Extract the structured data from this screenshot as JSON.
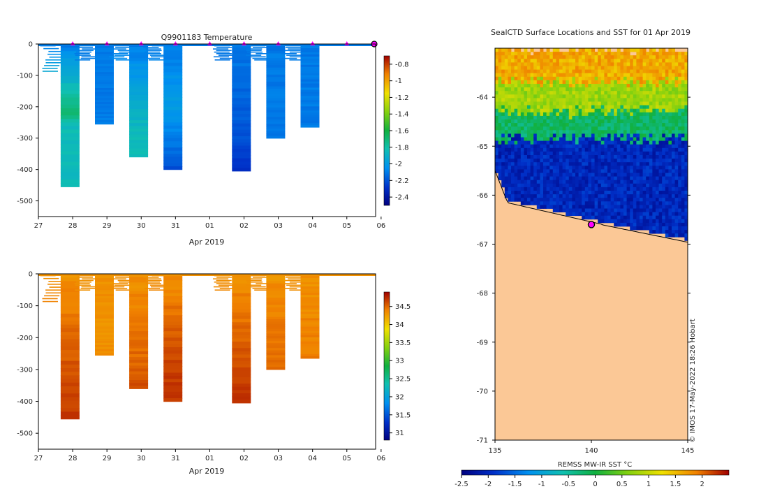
{
  "chart_data": [
    {
      "type": "heatmap",
      "title": "Q9901183  Temperature",
      "xlabel": "Apr 2019",
      "x_tick_labels": [
        "27",
        "28",
        "29",
        "30",
        "31",
        "01",
        "02",
        "03",
        "04",
        "05",
        "06"
      ],
      "y_tick_labels": [
        "0",
        "-100",
        "-200",
        "-300",
        "-400",
        "-500"
      ],
      "ylim": [
        -550,
        0
      ],
      "colorbar": {
        "ticks": [
          "-0.8",
          "-1",
          "-1.2",
          "-1.4",
          "-1.6",
          "-1.8",
          "-2",
          "-2.2",
          "-2.4"
        ],
        "range": [
          -2.5,
          -0.7
        ]
      },
      "profile_marker_days": [
        28,
        29,
        30,
        31,
        32,
        33,
        34,
        35,
        36
      ],
      "profiles": [
        {
          "day": 28,
          "bottom_depth": 455,
          "values": [
            [
              0,
              -2.1
            ],
            [
              220,
              -1.7
            ],
            [
              260,
              -1.85
            ],
            [
              455,
              -1.85
            ]
          ]
        },
        {
          "day": 29,
          "bottom_depth": 255,
          "values": [
            [
              0,
              -2.1
            ],
            [
              255,
              -2.1
            ]
          ]
        },
        {
          "day": 30,
          "bottom_depth": 360,
          "values": [
            [
              0,
              -2.1
            ],
            [
              280,
              -1.85
            ],
            [
              360,
              -1.85
            ]
          ]
        },
        {
          "day": 31,
          "bottom_depth": 400,
          "values": [
            [
              0,
              -2.1
            ],
            [
              200,
              -2.0
            ],
            [
              400,
              -2.2
            ]
          ]
        },
        {
          "day": 33,
          "bottom_depth": 405,
          "values": [
            [
              0,
              -2.1
            ],
            [
              300,
              -2.2
            ],
            [
              405,
              -2.3
            ]
          ]
        },
        {
          "day": 34,
          "bottom_depth": 300,
          "values": [
            [
              0,
              -2.1
            ],
            [
              300,
              -2.1
            ]
          ]
        },
        {
          "day": 35,
          "bottom_depth": 265,
          "values": [
            [
              0,
              -2.1
            ],
            [
              265,
              -2.1
            ]
          ]
        }
      ]
    },
    {
      "type": "heatmap",
      "title": "",
      "xlabel": "Apr 2019",
      "x_tick_labels": [
        "27",
        "28",
        "29",
        "30",
        "31",
        "01",
        "02",
        "03",
        "04",
        "05",
        "06"
      ],
      "y_tick_labels": [
        "0",
        "-100",
        "-200",
        "-300",
        "-400",
        "-500"
      ],
      "ylim": [
        -550,
        0
      ],
      "colorbar": {
        "ticks": [
          "34.5",
          "34",
          "33.5",
          "33",
          "32.5",
          "32",
          "31.5",
          "31"
        ],
        "range": [
          30.8,
          34.9
        ]
      },
      "profiles": [
        {
          "day": 28,
          "bottom_depth": 455,
          "values": [
            [
              0,
              34.3
            ],
            [
              220,
              34.5
            ],
            [
              455,
              34.7
            ]
          ]
        },
        {
          "day": 29,
          "bottom_depth": 255,
          "values": [
            [
              0,
              34.3
            ],
            [
              255,
              34.3
            ]
          ]
        },
        {
          "day": 30,
          "bottom_depth": 360,
          "values": [
            [
              0,
              34.3
            ],
            [
              280,
              34.5
            ],
            [
              360,
              34.6
            ]
          ]
        },
        {
          "day": 31,
          "bottom_depth": 400,
          "values": [
            [
              0,
              34.3
            ],
            [
              250,
              34.6
            ],
            [
              400,
              34.7
            ]
          ]
        },
        {
          "day": 33,
          "bottom_depth": 405,
          "values": [
            [
              0,
              34.3
            ],
            [
              300,
              34.6
            ],
            [
              405,
              34.7
            ]
          ]
        },
        {
          "day": 34,
          "bottom_depth": 300,
          "values": [
            [
              0,
              34.3
            ],
            [
              300,
              34.5
            ]
          ]
        },
        {
          "day": 35,
          "bottom_depth": 265,
          "values": [
            [
              0,
              34.3
            ],
            [
              265,
              34.4
            ]
          ]
        }
      ]
    },
    {
      "type": "heatmap",
      "title": "SealCTD Surface Locations and SST for 01 Apr 2019",
      "x_tick_labels": [
        "135",
        "140",
        "145"
      ],
      "y_tick_labels": [
        "-64",
        "-65",
        "-66",
        "-67",
        "-68",
        "-69",
        "-70",
        "-71"
      ],
      "xlim": [
        135,
        145
      ],
      "ylim": [
        -71,
        -63
      ],
      "colorbar": {
        "label": "REMSS MW-IR SST °C",
        "ticks": [
          "-2.5",
          "-2",
          "-1.5",
          "-1",
          "-0.5",
          "0",
          "0.5",
          "1",
          "1.5",
          "2"
        ],
        "range": [
          -2.5,
          2.5
        ]
      },
      "sst_zones_by_latitude": [
        {
          "lat_from": -63,
          "lat_to": -63.7,
          "sst": 1.6
        },
        {
          "lat_from": -63.7,
          "lat_to": -64.3,
          "sst": 0.8
        },
        {
          "lat_from": -64.3,
          "lat_to": -64.85,
          "sst": -0.2
        },
        {
          "lat_from": -64.85,
          "lat_to": -66.9,
          "sst": -2.0
        }
      ],
      "surface_location": {
        "lon": 140.0,
        "lat": -66.6
      },
      "credit": "© IMOS 17-May-2022 18:26 Hobart"
    }
  ]
}
